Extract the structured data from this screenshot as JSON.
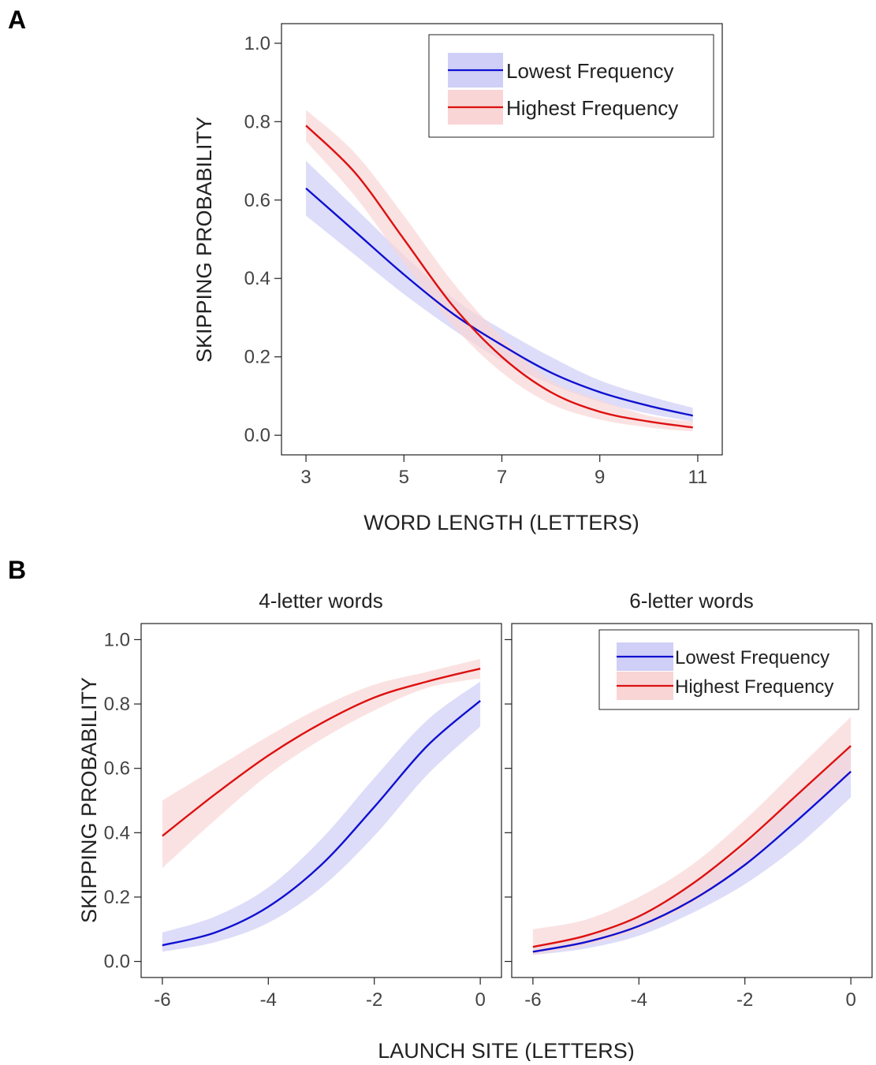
{
  "panel_labels": [
    "A",
    "B"
  ],
  "colors": {
    "low": "#1010d0",
    "high": "#dd1111",
    "low_band": "#cfcff7",
    "high_band": "#f9d5d5",
    "text": "#222222",
    "axis": "#222222"
  },
  "chart_data": [
    {
      "type": "line",
      "panel": "A",
      "title": "",
      "xlabel": "WORD LENGTH (LETTERS)",
      "ylabel": "SKIPPING PROBABILITY",
      "xlim": [
        2.5,
        11.5
      ],
      "ylim": [
        -0.05,
        1.05
      ],
      "xticks": [
        3,
        5,
        7,
        9,
        11
      ],
      "xtick_labels": [
        "3",
        "5",
        "7",
        "9",
        "11"
      ],
      "yticks": [
        0,
        0.2,
        0.4,
        0.6,
        0.8,
        1.0
      ],
      "ytick_labels": [
        "0.0",
        "0.2",
        "0.4",
        "0.6",
        "0.8",
        "1.0"
      ],
      "grid": false,
      "legend": {
        "position": "top-right",
        "show": true
      },
      "x": [
        3,
        4,
        5,
        6,
        7,
        8,
        9,
        10,
        10.9
      ],
      "series": [
        {
          "name": "Lowest Frequency",
          "color_key": "low",
          "y": [
            0.63,
            0.52,
            0.41,
            0.31,
            0.23,
            0.16,
            0.11,
            0.075,
            0.05
          ],
          "lower": [
            0.56,
            0.46,
            0.36,
            0.27,
            0.19,
            0.13,
            0.085,
            0.055,
            0.035
          ],
          "upper": [
            0.7,
            0.58,
            0.46,
            0.35,
            0.27,
            0.2,
            0.14,
            0.1,
            0.07
          ]
        },
        {
          "name": "Highest Frequency",
          "color_key": "high",
          "y": [
            0.79,
            0.67,
            0.5,
            0.33,
            0.2,
            0.11,
            0.06,
            0.035,
            0.02
          ],
          "lower": [
            0.75,
            0.61,
            0.44,
            0.28,
            0.16,
            0.08,
            0.04,
            0.02,
            0.01
          ],
          "upper": [
            0.83,
            0.72,
            0.56,
            0.39,
            0.25,
            0.14,
            0.09,
            0.05,
            0.035
          ]
        }
      ]
    },
    {
      "type": "line",
      "panel": "B",
      "title": "4-letter words",
      "xlabel": "",
      "ylabel": "SKIPPING PROBABILITY",
      "xlim": [
        -6.4,
        0.4
      ],
      "ylim": [
        -0.05,
        1.05
      ],
      "xticks": [
        -6,
        -4,
        -2,
        0
      ],
      "xtick_labels": [
        "-6",
        "-4",
        "-2",
        "0"
      ],
      "yticks": [
        0,
        0.2,
        0.4,
        0.6,
        0.8,
        1.0
      ],
      "ytick_labels": [
        "0.0",
        "0.2",
        "0.4",
        "0.6",
        "0.8",
        "1.0"
      ],
      "grid": false,
      "legend": {
        "show": false
      },
      "x": [
        -6,
        -5,
        -4,
        -3,
        -2,
        -1,
        0
      ],
      "series": [
        {
          "name": "Lowest Frequency",
          "color_key": "low",
          "y": [
            0.05,
            0.09,
            0.17,
            0.3,
            0.48,
            0.67,
            0.81
          ],
          "lower": [
            0.03,
            0.06,
            0.12,
            0.23,
            0.39,
            0.58,
            0.73
          ],
          "upper": [
            0.09,
            0.14,
            0.23,
            0.38,
            0.57,
            0.75,
            0.87
          ]
        },
        {
          "name": "Highest Frequency",
          "color_key": "high",
          "y": [
            0.39,
            0.52,
            0.64,
            0.74,
            0.82,
            0.87,
            0.91
          ],
          "lower": [
            0.29,
            0.44,
            0.58,
            0.69,
            0.78,
            0.85,
            0.88
          ],
          "upper": [
            0.5,
            0.6,
            0.7,
            0.79,
            0.86,
            0.9,
            0.94
          ]
        }
      ]
    },
    {
      "type": "line",
      "panel": "B",
      "title": "6-letter words",
      "xlabel": "",
      "ylabel": "",
      "xlim": [
        -6.4,
        0.4
      ],
      "ylim": [
        -0.05,
        1.05
      ],
      "xticks": [
        -6,
        -4,
        -2,
        0
      ],
      "xtick_labels": [
        "-6",
        "-4",
        "-2",
        "0"
      ],
      "yticks": [
        0,
        0.2,
        0.4,
        0.6,
        0.8,
        1.0
      ],
      "grid": false,
      "legend": {
        "position": "top-right",
        "show": true
      },
      "x": [
        -6,
        -5,
        -4,
        -3,
        -2,
        -1,
        0
      ],
      "series": [
        {
          "name": "Lowest Frequency",
          "color_key": "low",
          "y": [
            0.03,
            0.06,
            0.11,
            0.19,
            0.3,
            0.44,
            0.59
          ],
          "lower": [
            0.02,
            0.04,
            0.08,
            0.15,
            0.24,
            0.36,
            0.51
          ],
          "upper": [
            0.045,
            0.08,
            0.14,
            0.24,
            0.36,
            0.52,
            0.67
          ]
        },
        {
          "name": "Highest Frequency",
          "color_key": "high",
          "y": [
            0.045,
            0.08,
            0.14,
            0.24,
            0.37,
            0.52,
            0.67
          ],
          "lower": [
            0.02,
            0.05,
            0.1,
            0.18,
            0.3,
            0.45,
            0.58
          ],
          "upper": [
            0.1,
            0.13,
            0.2,
            0.3,
            0.44,
            0.6,
            0.76
          ]
        }
      ]
    }
  ],
  "shared_xlabel_B": "LAUNCH SITE (LETTERS)"
}
